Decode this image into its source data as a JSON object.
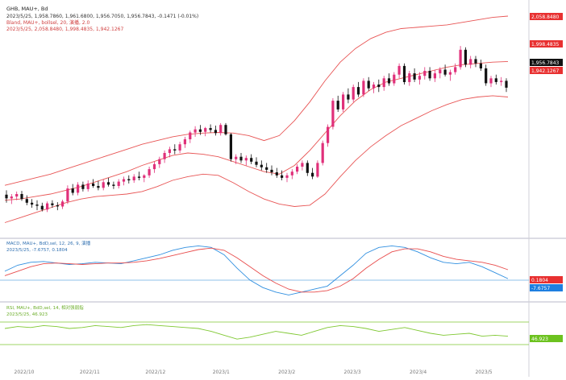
{
  "colors": {
    "bull": "#e0307a",
    "bear": "#111111",
    "band": "#e85555",
    "macd_dif": "#2f8fe0",
    "macd_dea": "#e84c4c",
    "rsi": "#7fc832",
    "divider": "#b8b8c8",
    "label_red": "#e83030",
    "label_dark": "#111111",
    "label_blue": "#1e7fe0",
    "label_green": "#6cc21f"
  },
  "main_panel": {
    "symbol": "GHB, MAU+, Bd",
    "ohlc_line": "2023/5/25, 1,958.7860, 1,961.6800, 1,956.7050, 1,956.7843, -0.1471 (-0.01%)",
    "boll_title": "Bland, MAU+, bollsel, 20, 演播, 2.0",
    "boll_values": "2023/5/25, 2,058.8480, 1,998.4835, 1,942.1267",
    "price_labels": {
      "upper": "2,058.8480",
      "middle": "1,998.4835",
      "last": "1,956.7843",
      "lower": "1,942.1267"
    }
  },
  "macd_panel": {
    "title": "MACD, MAU+, BdD,sel, 12, 26, 9, 演播",
    "values": "2023/5/25, -7.6757, 0.1804",
    "labels": {
      "dea": "0.1804",
      "dif": "-7.6757"
    }
  },
  "rsi_panel": {
    "title": "RSI, MAU+, BdD,sel, 14, 相对强弱指",
    "values": "2023/5/25, 46.923",
    "label": "46.923"
  },
  "chart_data": {
    "type": "candlestick",
    "x": [
      "2022/10",
      "2022/11",
      "2022/12",
      "2023/1",
      "2023/2",
      "2023/3",
      "2023/4",
      "2023/5"
    ],
    "candles": [
      [
        1785,
        1792,
        1772,
        1779
      ],
      [
        1779,
        1786,
        1770,
        1782
      ],
      [
        1782,
        1790,
        1776,
        1786
      ],
      [
        1786,
        1791,
        1775,
        1778
      ],
      [
        1778,
        1784,
        1768,
        1772
      ],
      [
        1772,
        1778,
        1764,
        1769
      ],
      [
        1769,
        1776,
        1760,
        1767
      ],
      [
        1767,
        1772,
        1758,
        1761
      ],
      [
        1761,
        1774,
        1757,
        1771
      ],
      [
        1771,
        1776,
        1764,
        1768
      ],
      [
        1768,
        1773,
        1760,
        1766
      ],
      [
        1766,
        1777,
        1762,
        1774
      ],
      [
        1774,
        1800,
        1770,
        1795
      ],
      [
        1795,
        1802,
        1784,
        1788
      ],
      [
        1788,
        1805,
        1784,
        1801
      ],
      [
        1801,
        1806,
        1790,
        1794
      ],
      [
        1794,
        1808,
        1790,
        1803
      ],
      [
        1803,
        1810,
        1796,
        1799
      ],
      [
        1799,
        1807,
        1792,
        1796
      ],
      [
        1796,
        1809,
        1792,
        1805
      ],
      [
        1805,
        1812,
        1798,
        1801
      ],
      [
        1801,
        1806,
        1794,
        1799
      ],
      [
        1799,
        1810,
        1795,
        1806
      ],
      [
        1806,
        1814,
        1800,
        1810
      ],
      [
        1810,
        1816,
        1803,
        1808
      ],
      [
        1808,
        1818,
        1804,
        1814
      ],
      [
        1814,
        1822,
        1808,
        1812
      ],
      [
        1812,
        1818,
        1805,
        1816
      ],
      [
        1816,
        1830,
        1812,
        1826
      ],
      [
        1826,
        1838,
        1820,
        1834
      ],
      [
        1834,
        1846,
        1828,
        1842
      ],
      [
        1842,
        1856,
        1836,
        1852
      ],
      [
        1852,
        1862,
        1845,
        1858
      ],
      [
        1858,
        1866,
        1850,
        1856
      ],
      [
        1856,
        1870,
        1852,
        1866
      ],
      [
        1866,
        1878,
        1860,
        1874
      ],
      [
        1874,
        1888,
        1868,
        1885
      ],
      [
        1885,
        1895,
        1878,
        1890
      ],
      [
        1890,
        1897,
        1881,
        1886
      ],
      [
        1886,
        1894,
        1879,
        1892
      ],
      [
        1892,
        1898,
        1885,
        1889
      ],
      [
        1889,
        1896,
        1880,
        1884
      ],
      [
        1884,
        1900,
        1880,
        1897
      ],
      [
        1897,
        1900,
        1880,
        1882
      ],
      [
        1882,
        1884,
        1838,
        1842
      ],
      [
        1842,
        1850,
        1834,
        1846
      ],
      [
        1846,
        1852,
        1836,
        1840
      ],
      [
        1840,
        1848,
        1832,
        1844
      ],
      [
        1844,
        1850,
        1834,
        1838
      ],
      [
        1838,
        1845,
        1829,
        1833
      ],
      [
        1833,
        1840,
        1824,
        1829
      ],
      [
        1829,
        1836,
        1820,
        1825
      ],
      [
        1825,
        1832,
        1816,
        1821
      ],
      [
        1821,
        1828,
        1812,
        1816
      ],
      [
        1816,
        1824,
        1808,
        1812
      ],
      [
        1812,
        1820,
        1805,
        1816
      ],
      [
        1816,
        1826,
        1810,
        1822
      ],
      [
        1822,
        1834,
        1818,
        1830
      ],
      [
        1830,
        1840,
        1824,
        1836
      ],
      [
        1836,
        1840,
        1815,
        1820
      ],
      [
        1820,
        1828,
        1810,
        1814
      ],
      [
        1814,
        1840,
        1812,
        1836
      ],
      [
        1836,
        1872,
        1832,
        1868
      ],
      [
        1868,
        1898,
        1862,
        1894
      ],
      [
        1894,
        1940,
        1890,
        1936
      ],
      [
        1936,
        1944,
        1918,
        1922
      ],
      [
        1922,
        1950,
        1918,
        1946
      ],
      [
        1946,
        1956,
        1932,
        1938
      ],
      [
        1938,
        1962,
        1934,
        1958
      ],
      [
        1958,
        1966,
        1942,
        1946
      ],
      [
        1946,
        1972,
        1942,
        1968
      ],
      [
        1968,
        1974,
        1952,
        1956
      ],
      [
        1956,
        1966,
        1948,
        1962
      ],
      [
        1962,
        1970,
        1950,
        1958
      ],
      [
        1958,
        1976,
        1952,
        1972
      ],
      [
        1972,
        1980,
        1960,
        1964
      ],
      [
        1964,
        1982,
        1960,
        1978
      ],
      [
        1978,
        1996,
        1972,
        1992
      ],
      [
        1992,
        1996,
        1962,
        1966
      ],
      [
        1966,
        1984,
        1960,
        1980
      ],
      [
        1980,
        1988,
        1966,
        1970
      ],
      [
        1970,
        1982,
        1962,
        1976
      ],
      [
        1976,
        1990,
        1970,
        1984
      ],
      [
        1984,
        1990,
        1968,
        1972
      ],
      [
        1972,
        1986,
        1966,
        1980
      ],
      [
        1980,
        1990,
        1972,
        1986
      ],
      [
        1986,
        1994,
        1975,
        1978
      ],
      [
        1978,
        1986,
        1968,
        1982
      ],
      [
        1982,
        1996,
        1978,
        1990
      ],
      [
        1990,
        2024,
        1986,
        2018
      ],
      [
        2018,
        2022,
        1990,
        1994
      ],
      [
        1994,
        2008,
        1988,
        2003
      ],
      [
        2003,
        2008,
        1990,
        1996
      ],
      [
        1996,
        2002,
        1984,
        1988
      ],
      [
        1988,
        1994,
        1960,
        1964
      ],
      [
        1964,
        1976,
        1958,
        1972
      ],
      [
        1972,
        1978,
        1962,
        1966
      ],
      [
        1966,
        1974,
        1960,
        1968
      ],
      [
        1968,
        1972,
        1950,
        1957
      ]
    ],
    "bollinger": {
      "upper": [
        1800,
        1806,
        1812,
        1818,
        1826,
        1834,
        1842,
        1850,
        1858,
        1866,
        1872,
        1878,
        1882,
        1884,
        1885,
        1884,
        1880,
        1872,
        1880,
        1904,
        1934,
        1968,
        1998,
        2020,
        2036,
        2046,
        2052,
        2054,
        2056,
        2058,
        2062,
        2066,
        2070,
        2072
      ],
      "middle": [
        1776,
        1778,
        1782,
        1786,
        1792,
        1798,
        1806,
        1814,
        1822,
        1832,
        1840,
        1848,
        1852,
        1850,
        1846,
        1838,
        1830,
        1822,
        1818,
        1832,
        1856,
        1884,
        1912,
        1936,
        1954,
        1966,
        1972,
        1978,
        1984,
        1990,
        1994,
        1996,
        1998,
        1999
      ],
      "lower": [
        1740,
        1748,
        1756,
        1764,
        1772,
        1778,
        1782,
        1784,
        1786,
        1790,
        1798,
        1808,
        1814,
        1818,
        1816,
        1804,
        1790,
        1778,
        1770,
        1766,
        1768,
        1786,
        1814,
        1840,
        1862,
        1880,
        1896,
        1908,
        1920,
        1930,
        1938,
        1942,
        1944,
        1942
      ]
    },
    "macd": {
      "dif": [
        -2,
        6,
        10,
        11,
        9,
        7,
        8,
        10,
        9,
        8,
        12,
        16,
        20,
        26,
        30,
        32,
        30,
        20,
        2,
        -14,
        -24,
        -30,
        -34,
        -30,
        -26,
        -22,
        -8,
        6,
        22,
        30,
        32,
        30,
        24,
        16,
        10,
        8,
        10,
        4,
        -4,
        -12
      ],
      "dea": [
        -8,
        -2,
        4,
        8,
        9,
        8,
        7,
        8,
        9,
        9,
        10,
        12,
        15,
        19,
        23,
        27,
        29,
        26,
        16,
        4,
        -8,
        -18,
        -26,
        -30,
        -30,
        -28,
        -22,
        -12,
        2,
        14,
        24,
        28,
        28,
        24,
        18,
        14,
        12,
        10,
        6,
        0
      ]
    },
    "rsi": [
      55,
      57,
      56,
      58,
      57,
      55,
      56,
      58,
      57,
      56,
      58,
      59,
      58,
      57,
      56,
      55,
      52,
      48,
      44,
      46,
      49,
      52,
      50,
      48,
      52,
      56,
      58,
      57,
      55,
      52,
      54,
      56,
      53,
      50,
      48,
      49,
      50,
      47,
      48,
      47
    ],
    "xlabel": "",
    "ylabel": ""
  }
}
